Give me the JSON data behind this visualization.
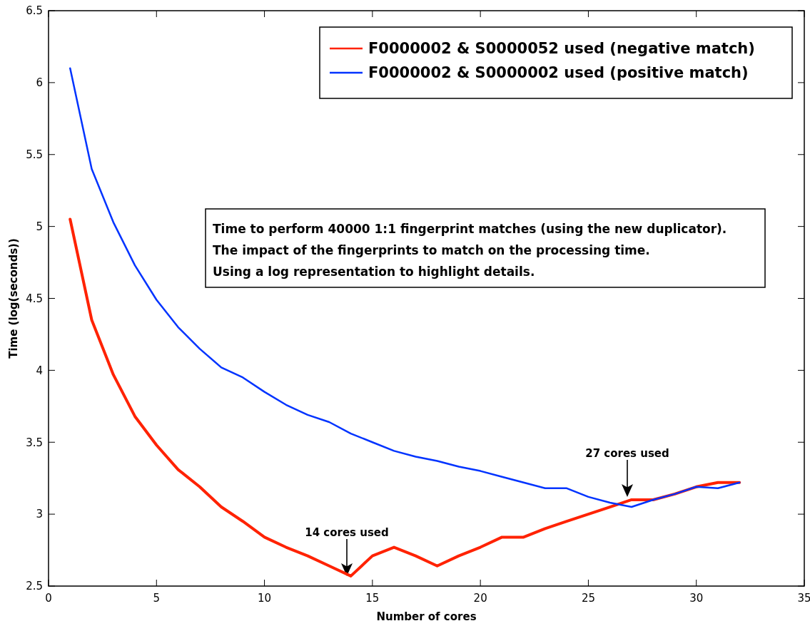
{
  "chart_data": {
    "type": "line",
    "xlabel": "Number of cores",
    "ylabel": "Time (log(seconds))",
    "x": [
      1,
      2,
      3,
      4,
      5,
      6,
      7,
      8,
      9,
      10,
      11,
      12,
      13,
      14,
      15,
      16,
      17,
      18,
      19,
      20,
      21,
      22,
      23,
      24,
      25,
      26,
      27,
      28,
      29,
      30,
      31,
      32
    ],
    "series": [
      {
        "name": "F0000002 & S0000052 used (negative match)",
        "color": "#ff2200",
        "values": [
          5.05,
          4.35,
          3.97,
          3.68,
          3.48,
          3.31,
          3.19,
          3.05,
          2.95,
          2.84,
          2.77,
          2.71,
          2.64,
          2.57,
          2.71,
          2.77,
          2.71,
          2.64,
          2.71,
          2.77,
          2.84,
          2.84,
          2.9,
          2.95,
          3.0,
          3.05,
          3.1,
          3.1,
          3.14,
          3.19,
          3.22,
          3.22
        ]
      },
      {
        "name": "F0000002 & S0000002 used (positive match)",
        "color": "#0033ff",
        "values": [
          6.1,
          5.4,
          5.03,
          4.73,
          4.49,
          4.3,
          4.15,
          4.02,
          3.95,
          3.85,
          3.76,
          3.69,
          3.64,
          3.56,
          3.5,
          3.44,
          3.4,
          3.37,
          3.33,
          3.3,
          3.26,
          3.22,
          3.18,
          3.18,
          3.12,
          3.08,
          3.05,
          3.1,
          3.14,
          3.19,
          3.18,
          3.22
        ]
      }
    ],
    "xlim": [
      0,
      35
    ],
    "xticks": [
      0,
      5,
      10,
      15,
      20,
      25,
      30,
      35
    ],
    "ylim": [
      2.5,
      6.5
    ],
    "yticks": [
      2.5,
      3,
      3.5,
      4,
      4.5,
      5,
      5.5,
      6,
      6.5
    ],
    "legend": "top right",
    "grid": false,
    "marker": "none",
    "line_style": "solid",
    "annotations": [
      "14 cores used",
      "27 cores used",
      "Time to perform 40000 1:1 fingerprint matches (using the new duplicator).\nThe impact of the fingerprints to match on the processing time.\nUsing a log representation to highlight details."
    ]
  }
}
